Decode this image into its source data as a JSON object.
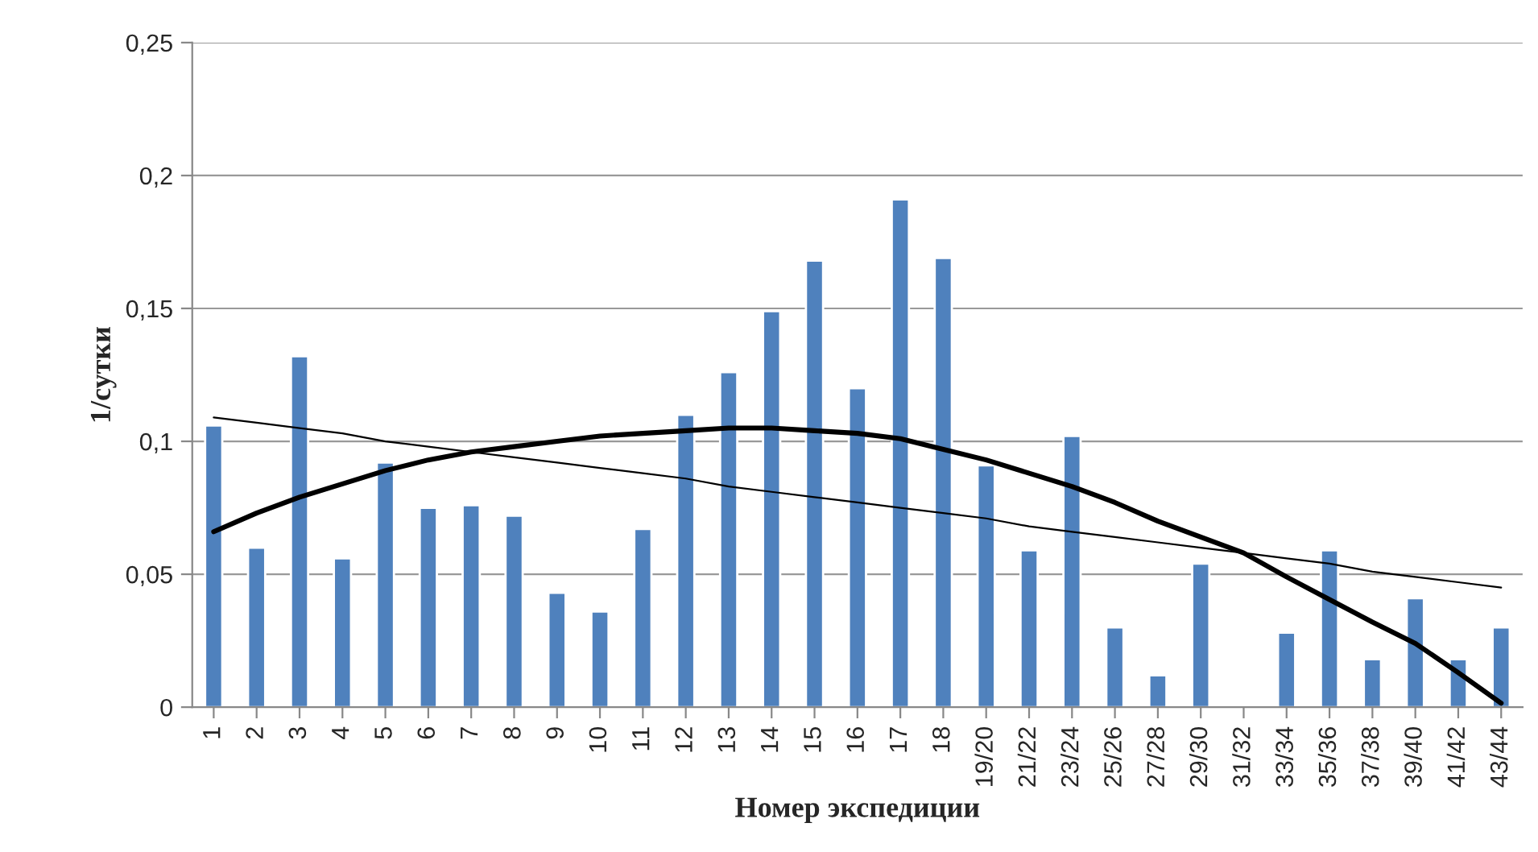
{
  "chart_data": {
    "type": "bar",
    "xlabel": "Номер экспедиции",
    "ylabel": "1/сутки",
    "categories": [
      "1",
      "2",
      "3",
      "4",
      "5",
      "6",
      "7",
      "8",
      "9",
      "10",
      "11",
      "12",
      "13",
      "14",
      "15",
      "16",
      "17",
      "18",
      "19/20",
      "21/22",
      "23/24",
      "25/26",
      "27/28",
      "29/30",
      "31/32",
      "33/34",
      "35/36",
      "37/38",
      "39/40",
      "41/42",
      "43/44"
    ],
    "series": [
      {
        "color": "#4f81bd",
        "values": [
          0.106,
          0.06,
          0.132,
          0.056,
          0.092,
          0.075,
          0.076,
          0.072,
          0.043,
          0.036,
          0.067,
          0.11,
          0.126,
          0.149,
          0.168,
          0.12,
          0.191,
          0.169,
          0.091,
          0.059,
          0.102,
          0.03,
          0.012,
          0.054,
          null,
          0.028,
          0.059,
          0.018,
          0.041,
          0.018,
          0.03
        ]
      },
      {
        "type": "line",
        "color": "#000000",
        "values": [
          0.109,
          0.107,
          0.105,
          0.103,
          0.1,
          0.098,
          0.096,
          0.094,
          0.092,
          0.09,
          0.088,
          0.086,
          0.083,
          0.081,
          0.079,
          0.077,
          0.075,
          0.073,
          0.071,
          0.068,
          0.066,
          0.064,
          0.062,
          0.06,
          0.058,
          0.056,
          0.054,
          0.051,
          0.049,
          0.047,
          0.045
        ]
      },
      {
        "type": "line",
        "color": "#000000",
        "values": [
          0.066,
          0.073,
          0.079,
          0.084,
          0.089,
          0.093,
          0.096,
          0.098,
          0.1,
          0.102,
          0.103,
          0.104,
          0.105,
          0.105,
          0.104,
          0.103,
          0.101,
          0.097,
          0.093,
          0.088,
          0.083,
          0.077,
          0.07,
          0.064,
          0.058,
          0.049,
          0.0405,
          0.032,
          0.024,
          0.013,
          0.0015
        ]
      }
    ],
    "ylim": [
      0,
      0.25
    ],
    "yticks": [
      {
        "value": 0,
        "label": "0"
      },
      {
        "value": 0.05,
        "label": "0,05"
      },
      {
        "value": 0.1,
        "label": "0,1"
      },
      {
        "value": 0.15,
        "label": "0,15"
      },
      {
        "value": 0.2,
        "label": "0,2"
      },
      {
        "value": 0.25,
        "label": "0,25"
      }
    ],
    "grid": "y",
    "legend": false,
    "marker": "none",
    "line_style": "solid"
  }
}
